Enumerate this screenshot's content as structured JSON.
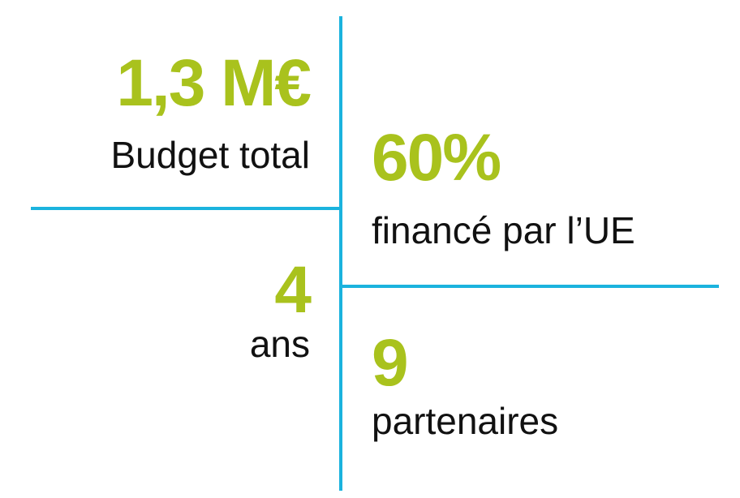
{
  "stats": [
    {
      "value": "1,3 M€",
      "label": "Budget total"
    },
    {
      "value": "60%",
      "label": "financé par l’UE"
    },
    {
      "value": "4",
      "label": "ans"
    },
    {
      "value": "9",
      "label": "partenaires"
    }
  ]
}
